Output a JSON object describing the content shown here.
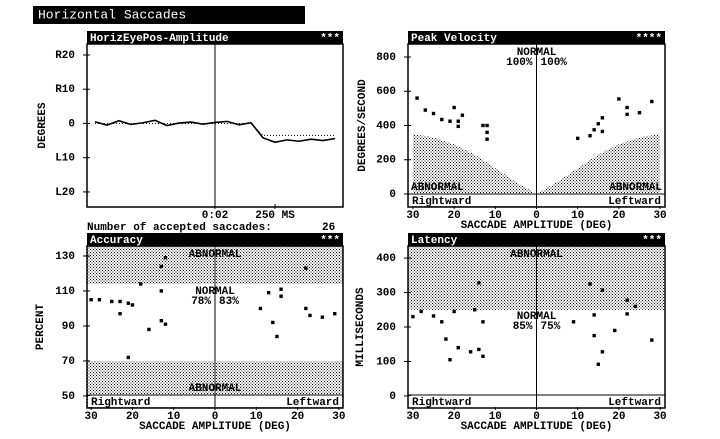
{
  "header": {
    "title": "Horizontal Saccades",
    "accepted_label": "Number of accepted saccades:",
    "accepted_count": 26
  },
  "chart_data": [
    {
      "type": "line",
      "title": "HorizEyePos-Amplitude",
      "stars": "***",
      "ylabel": "DEGREES",
      "xlim": [
        -533,
        533
      ],
      "ylim": [
        -24.4,
        23.2
      ],
      "yticks": [
        {
          "value": 20,
          "label": "R20"
        },
        {
          "value": 10,
          "label": "R10"
        },
        0,
        {
          "value": -10,
          "label": "L10"
        },
        {
          "value": -20,
          "label": "L20"
        }
      ],
      "xticks": [
        {
          "value": 0,
          "label": "0:02"
        },
        {
          "value": 250,
          "label": "250 MS"
        }
      ],
      "x": [
        -500,
        -450,
        -400,
        -350,
        -300,
        -250,
        -200,
        -150,
        -100,
        -50,
        0,
        50,
        100,
        150,
        200,
        250,
        300,
        350,
        400,
        450,
        500
      ],
      "series": [
        {
          "color": "#000000",
          "values": [
            0.5,
            -0.5,
            0.8,
            -0.3,
            0.2,
            0.9,
            -0.6,
            0.1,
            0.4,
            -0.2,
            0.3,
            0.6,
            -0.4,
            0.2,
            -4.2,
            -5.5,
            -4.8,
            -5.2,
            -4.6,
            -5.0,
            -4.4
          ]
        },
        {
          "color": "#000000",
          "dashed": true,
          "values": [
            0,
            0,
            0,
            0,
            0,
            0,
            0,
            0,
            0,
            0,
            0,
            0,
            0,
            0,
            -3.5,
            -3.5,
            -3.5,
            -3.5,
            -3.5,
            -3.5,
            -3.5
          ]
        }
      ]
    },
    {
      "type": "scatter",
      "title": "Peak Velocity",
      "stars": "****",
      "ylabel": "DEGREES/SECOND",
      "xlabel": "SACCADE AMPLITUDE (DEG)",
      "left_label": "Rightward",
      "right_label": "Leftward",
      "normal_label": "NORMAL",
      "normal_pct": [
        "100%",
        "100%"
      ],
      "abnormal_labels": [
        "ABNORMAL",
        "ABNORMAL"
      ],
      "xlim": [
        -31.2,
        31.2
      ],
      "ylim": [
        -76,
        876
      ],
      "yticks": [
        800,
        600,
        400,
        200,
        0
      ],
      "xticks": [
        {
          "value": -30,
          "label": "30"
        },
        {
          "value": -20,
          "label": "20"
        },
        {
          "value": -10,
          "label": "10"
        },
        0,
        10,
        20,
        30
      ],
      "abnormal_area": {
        "x": [
          -30,
          -25,
          -20,
          -15,
          -10,
          -5,
          0,
          5,
          10,
          15,
          20,
          25,
          30
        ],
        "values": [
          350,
          330,
          290,
          230,
          150,
          70,
          0,
          70,
          150,
          230,
          290,
          330,
          350
        ]
      },
      "x": [
        -29,
        -27,
        -25,
        -23,
        -20,
        -21,
        -19,
        -18,
        -19,
        -13,
        -12,
        -12,
        -12,
        10,
        13,
        14,
        15,
        16,
        16,
        20,
        22,
        22,
        25,
        28
      ],
      "values": [
        560,
        490,
        470,
        435,
        505,
        425,
        425,
        460,
        395,
        400,
        400,
        360,
        320,
        325,
        340,
        375,
        410,
        365,
        445,
        555,
        505,
        465,
        475,
        540
      ]
    },
    {
      "type": "scatter",
      "title": "Accuracy",
      "stars": "***",
      "ylabel": "PERCENT",
      "xlabel": "SACCADE AMPLITUDE (DEG)",
      "left_label": "Rightward",
      "right_label": "Leftward",
      "normal_label": "NORMAL",
      "normal_pct": [
        "78%",
        "83%"
      ],
      "abnormal_labels": [
        "ABNORMAL",
        "ABNORMAL"
      ],
      "xlim": [
        -31,
        31
      ],
      "ylim": [
        43.1,
        135.7
      ],
      "yticks": [
        130,
        110,
        90,
        70,
        50
      ],
      "xticks": [
        {
          "value": -30,
          "label": "30"
        },
        {
          "value": -20,
          "label": "20"
        },
        {
          "value": -10,
          "label": "10"
        },
        0,
        10,
        20,
        30
      ],
      "abnormal_above": 114,
      "abnormal_below": 70,
      "x": [
        -30,
        -28,
        -25,
        -23,
        -23,
        -21,
        -20,
        -21,
        -18,
        -16,
        -13,
        -12,
        -13,
        -13,
        -12,
        11,
        13,
        14,
        15,
        16,
        16,
        22,
        22,
        23,
        26,
        29
      ],
      "values": [
        105,
        105,
        104,
        104,
        97,
        103,
        102,
        72,
        114,
        88,
        93,
        91,
        110,
        124,
        129,
        100,
        109,
        92,
        84,
        111,
        107,
        100,
        123,
        96,
        95,
        97
      ]
    },
    {
      "type": "scatter",
      "title": "Latency",
      "stars": "***",
      "ylabel": "MILLISECONDS",
      "xlabel": "SACCADE AMPLITUDE (DEG)",
      "left_label": "Rightward",
      "right_label": "Leftward",
      "normal_label": "NORMAL",
      "normal_pct": [
        "85%",
        "75%"
      ],
      "abnormal_labels": [
        "ABNORMAL"
      ],
      "xlim": [
        -31.2,
        31.2
      ],
      "ylim": [
        -35,
        435
      ],
      "yticks": [
        400,
        300,
        200,
        100,
        0
      ],
      "xticks": [
        {
          "value": -30,
          "label": "30"
        },
        {
          "value": -20,
          "label": "20"
        },
        {
          "value": -10,
          "label": "10"
        },
        0,
        10,
        20,
        30
      ],
      "abnormal_above": 250,
      "x": [
        -30,
        -28,
        -25,
        -23,
        -22,
        -21,
        -20,
        -19,
        -16,
        -14,
        -14,
        -13,
        -13,
        -15,
        9,
        13,
        14,
        14,
        15,
        16,
        16,
        19,
        22,
        22,
        24,
        28
      ],
      "values": [
        230,
        245,
        232,
        215,
        165,
        105,
        245,
        140,
        128,
        328,
        135,
        115,
        215,
        250,
        215,
        325,
        235,
        175,
        92,
        128,
        307,
        190,
        238,
        278,
        260,
        162
      ]
    }
  ]
}
